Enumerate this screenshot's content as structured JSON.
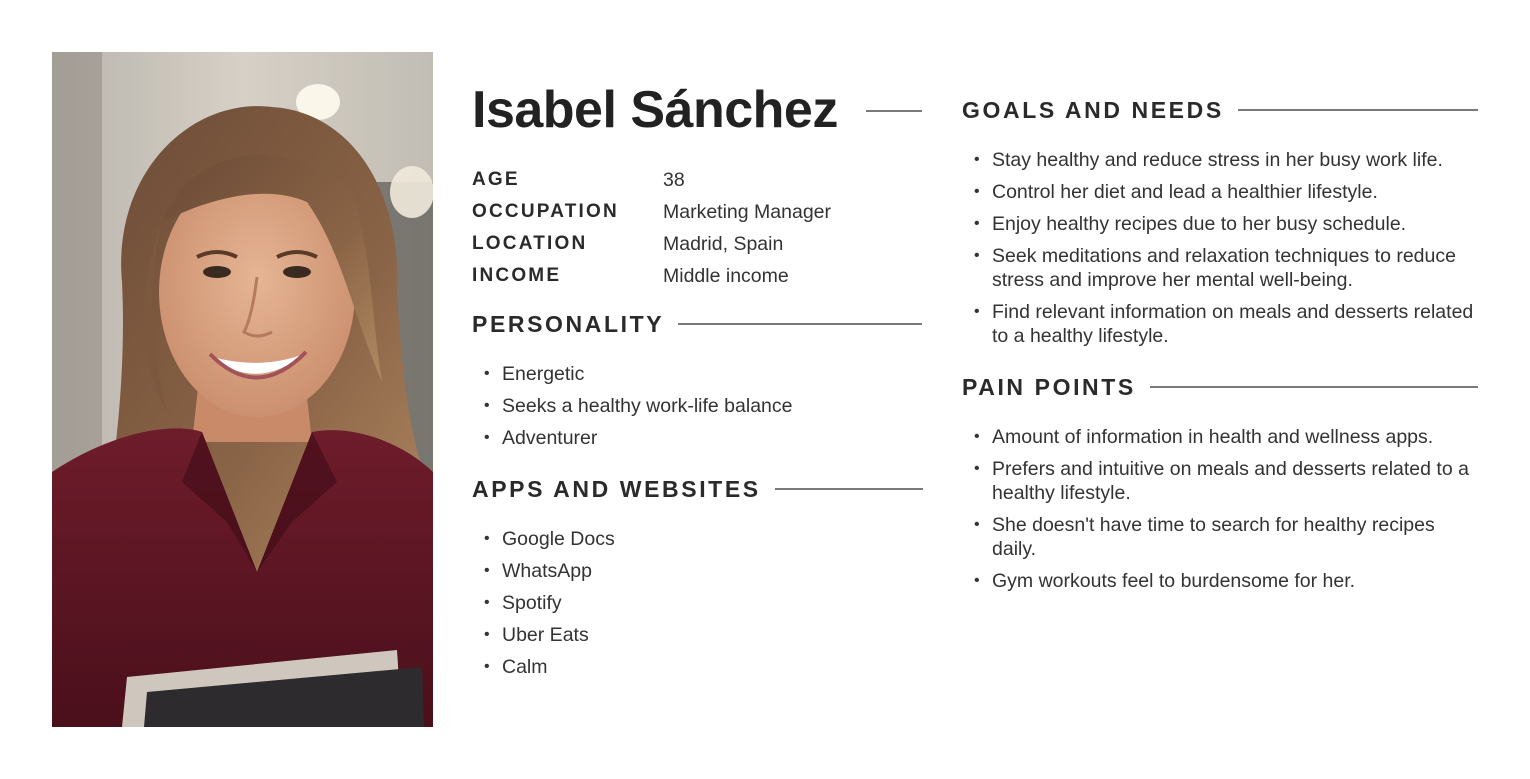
{
  "persona": {
    "name": "Isabel Sánchez"
  },
  "facts": [
    {
      "label": "AGE",
      "value": "38"
    },
    {
      "label": "OCCUPATION",
      "value": "Marketing Manager"
    },
    {
      "label": "LOCATION",
      "value": "Madrid, Spain"
    },
    {
      "label": "INCOME",
      "value": "Middle income"
    }
  ],
  "personality": {
    "heading": "PERSONALITY",
    "items": [
      "Energetic",
      "Seeks a healthy work-life balance",
      "Adventurer"
    ]
  },
  "apps": {
    "heading": "APPS AND WEBSITES",
    "items": [
      "Google Docs",
      "WhatsApp",
      "Spotify",
      "Uber Eats",
      "Calm"
    ]
  },
  "goals": {
    "heading": "GOALS AND NEEDS",
    "items": [
      "Stay healthy and reduce stress in her busy work life.",
      "Control her diet and lead a healthier lifestyle.",
      "Enjoy healthy recipes due to her busy schedule.",
      "Seek meditations and relaxation techniques to reduce stress and improve her mental well-being.",
      "Find relevant information on meals and desserts related to a healthy lifestyle."
    ]
  },
  "pain_points": {
    "heading": "PAIN POINTS",
    "items": [
      "Amount of information in health and wellness apps.",
      "Prefers and intuitive on meals and desserts related to a healthy lifestyle.",
      "She doesn't have time to search for healthy recipes daily.",
      "Gym workouts feel to burdensome for her."
    ]
  },
  "colors": {
    "text": "#2a2a2a",
    "rule": "#7a7a7a",
    "blouse": "#5c1522",
    "background": "#ffffff"
  }
}
